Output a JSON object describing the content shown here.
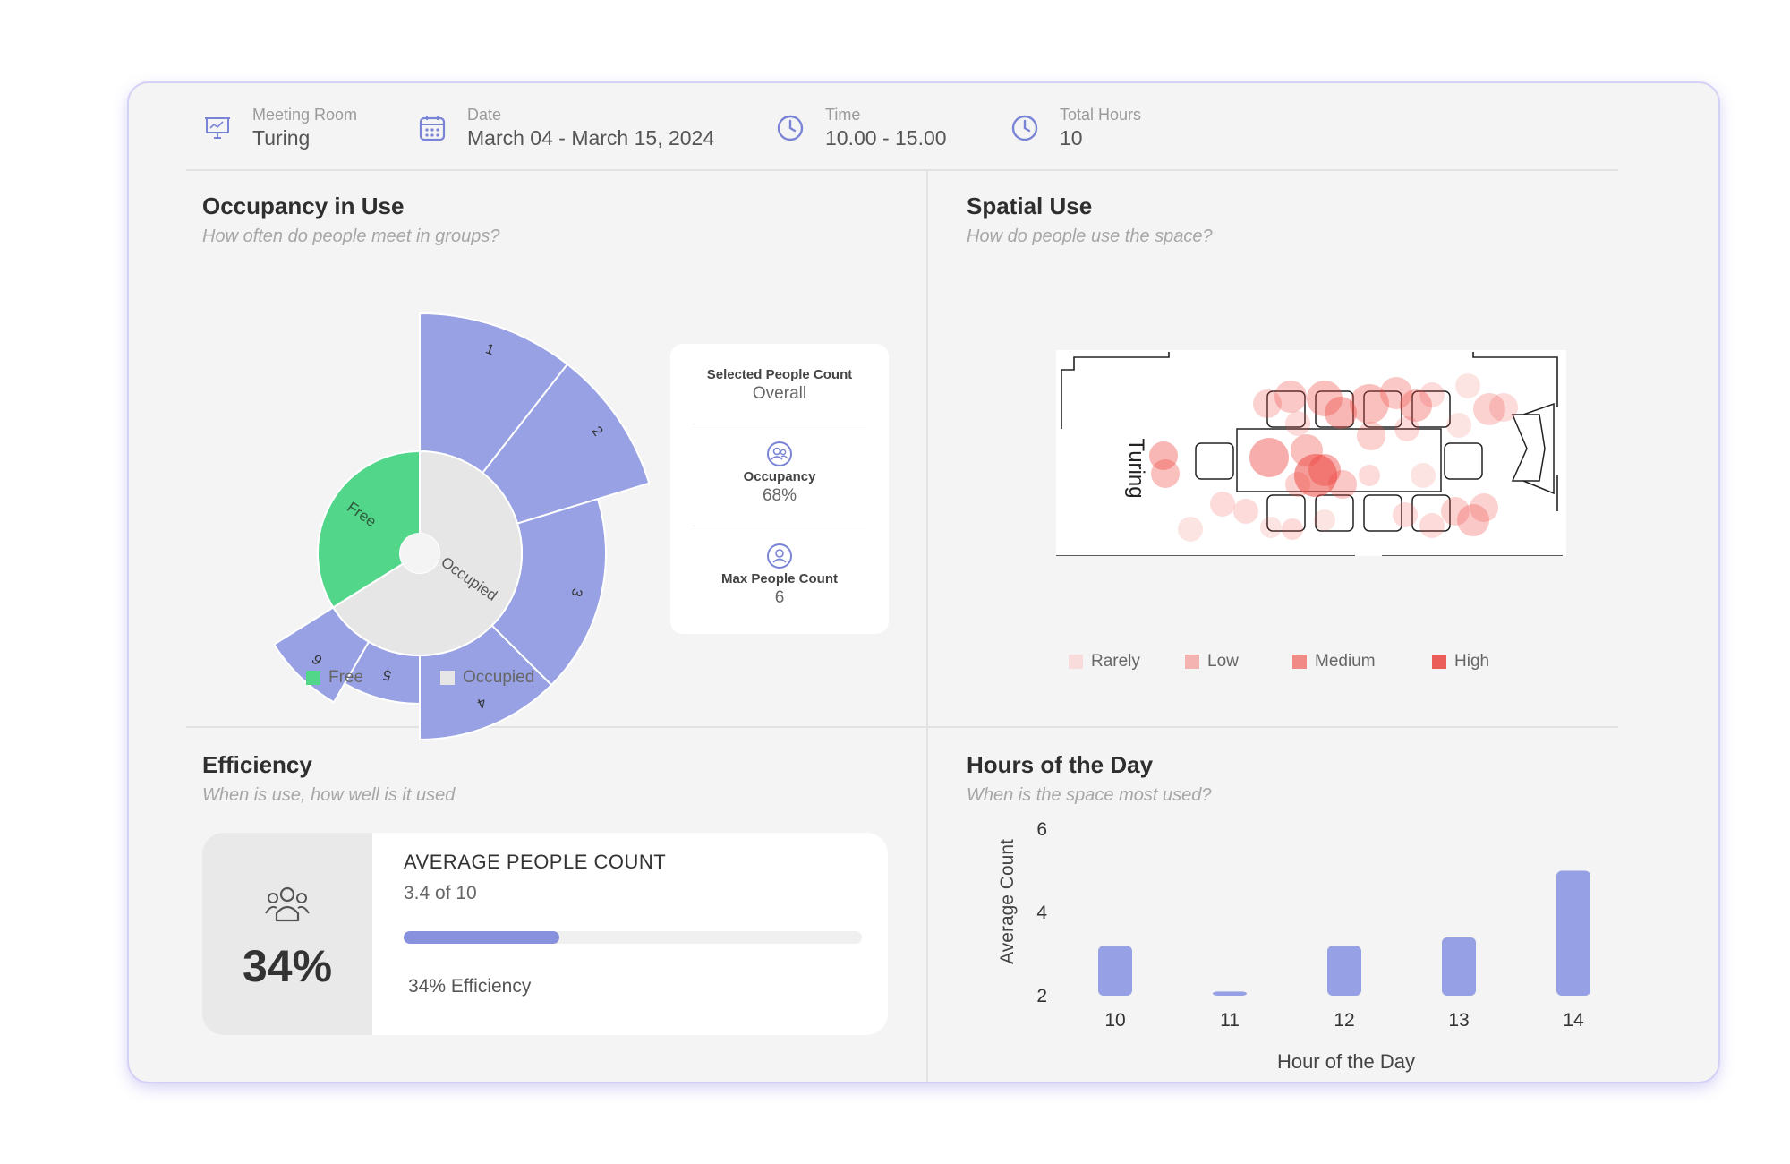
{
  "header": {
    "room_label": "Meeting Room",
    "room_value": "Turing",
    "date_label": "Date",
    "date_value": "March 04 - March 15, 2024",
    "time_label": "Time",
    "time_value": "10.00 - 15.00",
    "hours_label": "Total Hours",
    "hours_value": "10"
  },
  "occupancy": {
    "title": "Occupancy in Use",
    "subtitle": "How often do people meet in groups?",
    "inner_labels": {
      "free": "Free",
      "occupied": "Occupied"
    },
    "outer_labels": [
      "1",
      "2",
      "3",
      "4",
      "5",
      "6"
    ],
    "legend": [
      "Free",
      "Occupied"
    ],
    "colors": {
      "free": "#52d68a",
      "occupied": "#e6e6e6",
      "groups": "#97a1e3"
    },
    "stats": {
      "selected_label": "Selected People Count",
      "selected_value": "Overall",
      "occupancy_label": "Occupancy",
      "occupancy_value": "68%",
      "max_label": "Max People Count",
      "max_value": "6"
    }
  },
  "spatial": {
    "title": "Spatial Use",
    "subtitle": "How do people use the space?",
    "room_name": "Turing",
    "legend": [
      "Rarely",
      "Low",
      "Medium",
      "High"
    ],
    "legend_colors": [
      "#f8dcdc",
      "#f4b3b0",
      "#ef8a86",
      "#ea5d58"
    ]
  },
  "efficiency": {
    "title": "Efficiency",
    "subtitle": "When is use, how well is it used",
    "percent_text": "34%",
    "heading": "AVERAGE PEOPLE COUNT",
    "count_text": "3.4 of 10",
    "progress": 0.34,
    "efficiency_text": "34% Efficiency"
  },
  "hours": {
    "title": "Hours of the Day",
    "subtitle": "When is the space most used?"
  },
  "chart_data": {
    "type": "bar",
    "categories": [
      "10",
      "11",
      "12",
      "13",
      "14"
    ],
    "values": [
      3.2,
      2.1,
      3.2,
      3.4,
      5.0
    ],
    "xlabel": "Hour of the Day",
    "ylabel": "Average Count",
    "ylim": [
      2,
      6
    ],
    "yticks": [
      "2",
      "4",
      "6"
    ],
    "color": "#96a0e4",
    "grid": false
  }
}
